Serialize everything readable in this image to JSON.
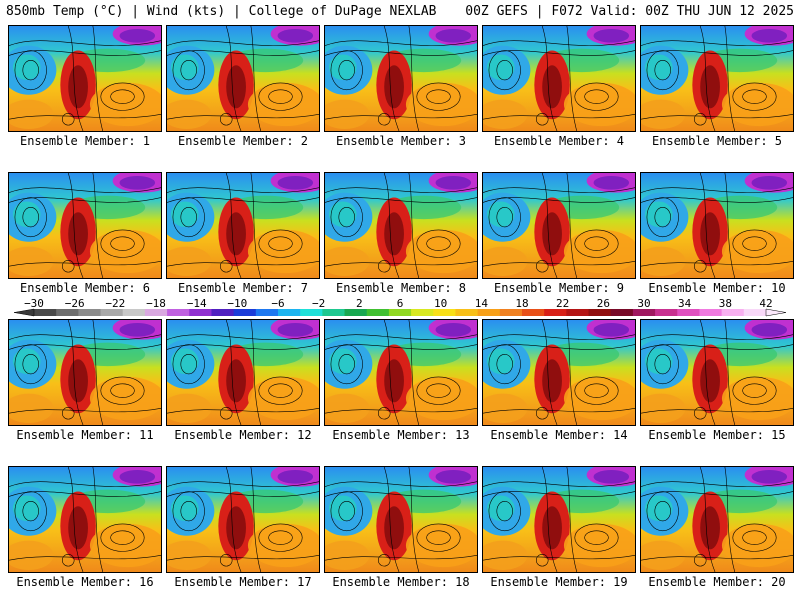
{
  "header": {
    "left": "850mb Temp (°C) | Wind (kts) | College of DuPage NEXLAB",
    "right": "00Z GEFS | F072 Valid: 00Z THU JUN 12 2025"
  },
  "members": [
    "Ensemble Member: 1",
    "Ensemble Member: 2",
    "Ensemble Member: 3",
    "Ensemble Member: 4",
    "Ensemble Member: 5",
    "Ensemble Member: 6",
    "Ensemble Member: 7",
    "Ensemble Member: 8",
    "Ensemble Member: 9",
    "Ensemble Member: 10",
    "Ensemble Member: 11",
    "Ensemble Member: 12",
    "Ensemble Member: 13",
    "Ensemble Member: 14",
    "Ensemble Member: 15",
    "Ensemble Member: 16",
    "Ensemble Member: 17",
    "Ensemble Member: 18",
    "Ensemble Member: 19",
    "Ensemble Member: 20"
  ],
  "colorbar": {
    "ticks": [
      "−30",
      "−26",
      "−22",
      "−18",
      "−14",
      "−10",
      "−6",
      "−2",
      "2",
      "6",
      "10",
      "14",
      "18",
      "22",
      "26",
      "30",
      "34",
      "38",
      "42"
    ],
    "colors": [
      "#4a4a4a",
      "#6e6e6e",
      "#8c8c8c",
      "#a9a9a9",
      "#c8c8c8",
      "#d9a8e0",
      "#c060e0",
      "#9030d0",
      "#5020c0",
      "#1c3cd8",
      "#1e78f0",
      "#1cb4f0",
      "#1ee0d8",
      "#1ec890",
      "#18a850",
      "#40c030",
      "#90d820",
      "#d8e820",
      "#f8e018",
      "#f8c018",
      "#f8a018",
      "#f08020",
      "#e85018",
      "#d82018",
      "#b41414",
      "#900e0e",
      "#780a28",
      "#a01860",
      "#c83090",
      "#e050c0",
      "#f07ae0",
      "#f8b0f0",
      "#f8d8f8"
    ]
  }
}
